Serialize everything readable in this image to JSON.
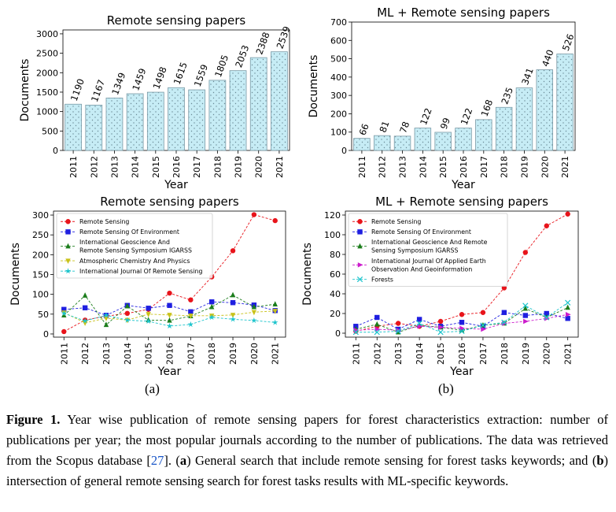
{
  "chart_data": [
    {
      "type": "bar",
      "title": "Remote sensing papers",
      "xlabel": "Year",
      "ylabel": "Documents",
      "categories": [
        "2011",
        "2012",
        "2013",
        "2014",
        "2015",
        "2016",
        "2017",
        "2018",
        "2019",
        "2020",
        "2021"
      ],
      "values": [
        1190,
        1167,
        1349,
        1459,
        1498,
        1615,
        1559,
        1805,
        2053,
        2388,
        2539
      ],
      "ylim": [
        0,
        3100
      ],
      "yticks": [
        0,
        500,
        1000,
        1500,
        2000,
        2500,
        3000
      ],
      "bar_color": "#c6ecf5",
      "edge_color": "#7a9aa6"
    },
    {
      "type": "bar",
      "title": "ML + Remote sensing papers",
      "xlabel": "Year",
      "ylabel": "Documents",
      "categories": [
        "2011",
        "2012",
        "2013",
        "2014",
        "2015",
        "2016",
        "2017",
        "2018",
        "2019",
        "2020",
        "2021"
      ],
      "values": [
        66,
        81,
        78,
        122,
        99,
        122,
        168,
        235,
        341,
        440,
        526
      ],
      "ylim": [
        0,
        700
      ],
      "yticks": [
        0,
        100,
        200,
        300,
        400,
        500,
        600,
        700
      ],
      "bar_color": "#c6ecf5",
      "edge_color": "#7a9aa6"
    },
    {
      "type": "line",
      "title": "Remote sensing papers",
      "xlabel": "Year",
      "ylabel": "Documents",
      "x": [
        "2011",
        "2012",
        "2013",
        "2014",
        "2015",
        "2016",
        "2017",
        "2018",
        "2019",
        "2020",
        "2021"
      ],
      "ylim": [
        -8,
        310
      ],
      "yticks": [
        0,
        50,
        100,
        150,
        200,
        250,
        300
      ],
      "legend_position": "upper-left",
      "series": [
        {
          "name": "Remote Sensing",
          "color": "#e8141b",
          "marker": "circle",
          "values": [
            6,
            35,
            45,
            52,
            62,
            103,
            86,
            144,
            210,
            301,
            286
          ]
        },
        {
          "name": "Remote Sensing Of Environment",
          "color": "#1f1fe0",
          "marker": "square",
          "values": [
            62,
            66,
            47,
            72,
            65,
            72,
            56,
            81,
            79,
            73,
            59
          ]
        },
        {
          "name": "International Geoscience And\nRemote Sensing Symposium IGARSS",
          "color": "#1c7d1c",
          "marker": "triangle-up",
          "values": [
            47,
            97,
            23,
            70,
            35,
            34,
            45,
            68,
            98,
            68,
            75
          ]
        },
        {
          "name": "Atmospheric Chemistry And Physics",
          "color": "#c9c21a",
          "marker": "triangle-down",
          "values": [
            54,
            28,
            40,
            35,
            50,
            48,
            46,
            46,
            48,
            55,
            58
          ]
        },
        {
          "name": "International Journal Of Remote Sensing",
          "color": "#1cc4cc",
          "marker": "star",
          "values": [
            52,
            33,
            47,
            35,
            32,
            20,
            24,
            42,
            37,
            34,
            29
          ]
        }
      ]
    },
    {
      "type": "line",
      "title": "ML + Remote sensing papers",
      "xlabel": "Year",
      "ylabel": "Documents",
      "x": [
        "2011",
        "2012",
        "2013",
        "2014",
        "2015",
        "2016",
        "2017",
        "2018",
        "2019",
        "2020",
        "2021"
      ],
      "ylim": [
        -4,
        124
      ],
      "yticks": [
        0,
        20,
        40,
        60,
        80,
        100,
        120
      ],
      "legend_position": "upper-left",
      "series": [
        {
          "name": "Remote Sensing",
          "color": "#e8141b",
          "marker": "circle",
          "values": [
            2,
            7,
            10,
            7,
            12,
            19,
            21,
            46,
            82,
            109,
            121
          ]
        },
        {
          "name": "Remote Sensing Of Environment",
          "color": "#1f1fe0",
          "marker": "square",
          "values": [
            7,
            16,
            4,
            14,
            7,
            11,
            7,
            21,
            18,
            20,
            15
          ]
        },
        {
          "name": "International Geoscience And Remote\nSensing Symposium IGARSS",
          "color": "#1c7d1c",
          "marker": "triangle-up",
          "values": [
            4,
            9,
            1,
            8,
            6,
            3,
            8,
            10,
            25,
            16,
            26
          ]
        },
        {
          "name": "International Journal Of Applied Earth\nObservation And Geoinformation",
          "color": "#cc1ccc",
          "marker": "triangle-right",
          "values": [
            3,
            4,
            3,
            7,
            6,
            5,
            4,
            10,
            12,
            15,
            19
          ]
        },
        {
          "name": "Forests",
          "color": "#1cc4cc",
          "marker": "x",
          "values": [
            1,
            1,
            2,
            10,
            1,
            2,
            8,
            11,
            28,
            16,
            31
          ]
        }
      ]
    }
  ],
  "panel_labels": {
    "a": "(a)",
    "b": "(b)"
  },
  "caption": {
    "lead": "Figure 1.",
    "text_1": " Year wise publication of remote sensing papers for forest characteristics extraction: number of publications per year; the most popular journals according to the number of publications. The data was retrieved from the Scopus database [",
    "cite": "27",
    "text_2": "]. (",
    "a_label": "a",
    "text_3": ") General search that include remote sensing for forest tasks keywords; and (",
    "b_label": "b",
    "text_4": ") intersection of general remote sensing search for forest tasks results with ML-specific keywords."
  }
}
